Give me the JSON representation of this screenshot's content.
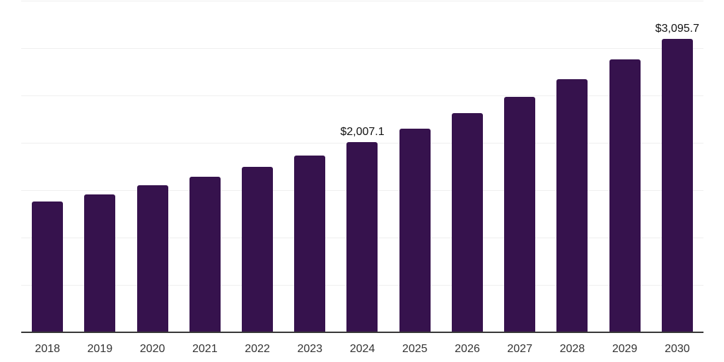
{
  "chart_data": {
    "type": "bar",
    "title": "",
    "xlabel": "",
    "ylabel": "",
    "categories": [
      "2018",
      "2019",
      "2020",
      "2021",
      "2022",
      "2023",
      "2024",
      "2025",
      "2026",
      "2027",
      "2028",
      "2029",
      "2030"
    ],
    "values": [
      1380,
      1459,
      1550,
      1642,
      1749,
      1866,
      2007.1,
      2147,
      2314,
      2483,
      2674,
      2878,
      3095.7
    ],
    "data_labels": {
      "2024": "$2,007.1",
      "2030": "$3,095.7"
    },
    "ylim": [
      0,
      3500
    ],
    "gridline_step": 500,
    "grid": "horizontal",
    "y_tick_labels_visible": false,
    "legend": "none",
    "colors": {
      "bar": "#36124D",
      "axis_line": "#383838",
      "gridline": "#efefef",
      "x_tick_label": "#333333",
      "data_label": "#111111",
      "background": "#ffffff"
    }
  }
}
